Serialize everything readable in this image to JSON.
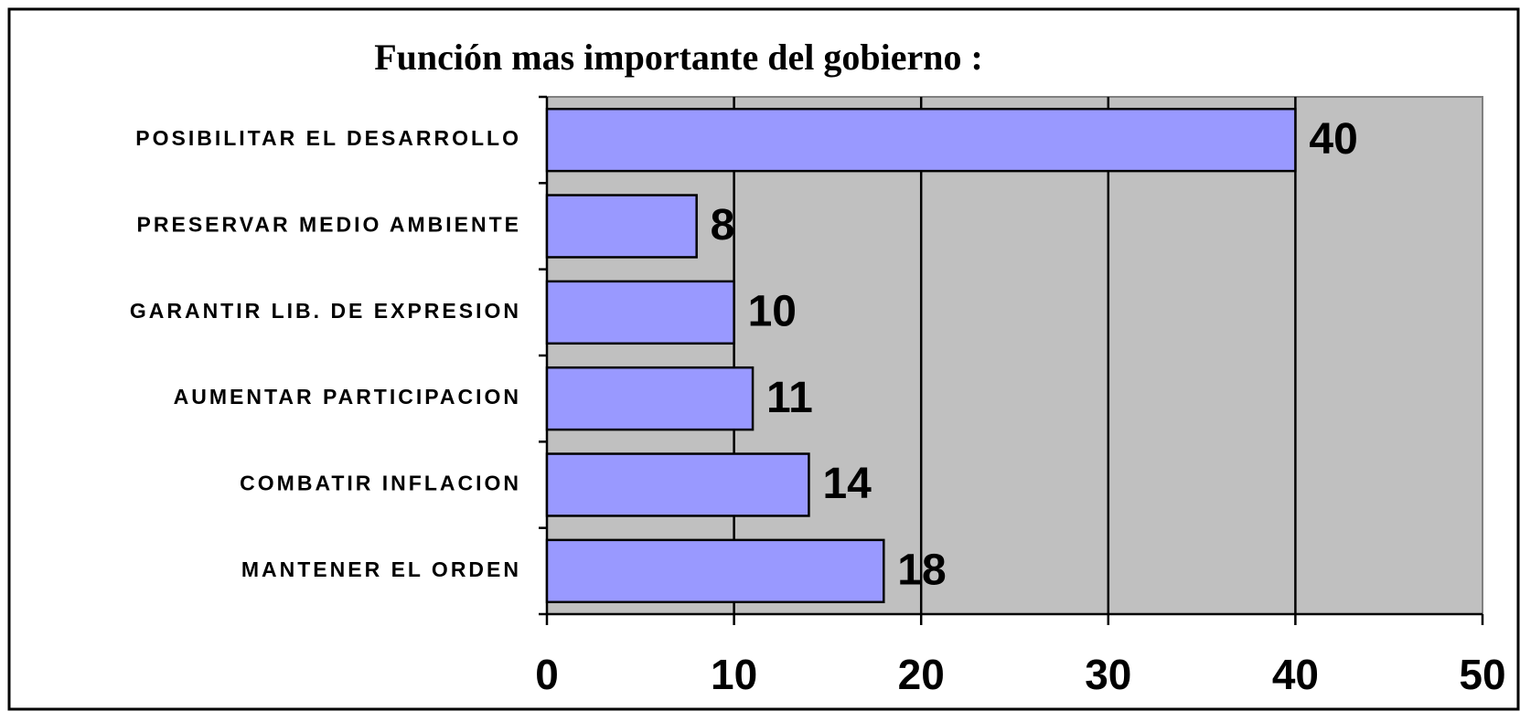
{
  "chart_data": {
    "type": "bar",
    "orientation": "horizontal",
    "title": "Función mas importante del gobierno :",
    "categories": [
      "POSIBILITAR EL DESARROLLO",
      "PRESERVAR MEDIO AMBIENTE",
      "GARANTIR LIB. DE EXPRESION",
      "AUMENTAR PARTICIPACION",
      "COMBATIR INFLACION",
      "MANTENER EL ORDEN"
    ],
    "values": [
      40,
      8,
      10,
      11,
      14,
      18
    ],
    "color": "#9999ff",
    "xlim": [
      0,
      50
    ],
    "xticks": [
      0,
      10,
      20,
      30,
      40,
      50
    ],
    "grid": true
  }
}
